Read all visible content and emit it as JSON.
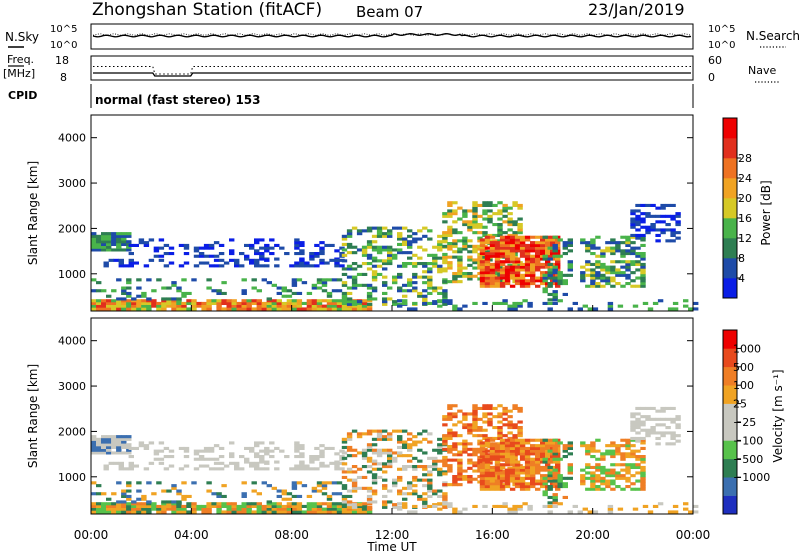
{
  "header": {
    "station": "Zhongshan Station (fitACF)",
    "beam": "Beam 07",
    "date": "23/Jan/2019"
  },
  "noise_panel": {
    "left_label": "N.Sky",
    "right_label": "N.Search",
    "left_ticks": [
      "10^5",
      "10^0"
    ],
    "right_ticks": [
      "10^5",
      "10^0"
    ]
  },
  "freq_panel": {
    "left_label_1": "Freq.",
    "left_label_2": "[MHz]",
    "right_label": "Nave",
    "left_ticks": [
      "18",
      "8"
    ],
    "right_ticks": [
      "60",
      "0"
    ]
  },
  "cpid_panel": {
    "label": "CPID",
    "text": "normal (fast stereo) 153"
  },
  "chart_data": [
    {
      "type": "heatmap",
      "quantity": "Power",
      "ylabel": "Slant Range [km]",
      "ylim": [
        180,
        4500
      ],
      "yticks": [
        "1000",
        "2000",
        "3000",
        "4000"
      ],
      "xlim_hours": [
        0,
        24
      ],
      "colorbar_label": "Power [dB]",
      "colorbar_ticks": [
        "4",
        "8",
        "12",
        "16",
        "20",
        "24",
        "28"
      ],
      "colors": [
        "#0a1ee6",
        "#1e4ba8",
        "#2e7e52",
        "#49b34a",
        "#d6c926",
        "#f0a323",
        "#ee7222",
        "#e12f1d",
        "#ee0000"
      ]
    },
    {
      "type": "heatmap",
      "quantity": "Velocity",
      "ylabel": "Slant Range [km]",
      "ylim": [
        180,
        4500
      ],
      "yticks": [
        "1000",
        "2000",
        "3000",
        "4000"
      ],
      "xlim_hours": [
        0,
        24
      ],
      "colorbar_label": "Velocity [m s⁻¹]",
      "colorbar_ticks": [
        "1000",
        "500",
        "100",
        "25",
        "−25",
        "−100",
        "−500",
        "−1000"
      ],
      "colors": [
        "#1e2fbf",
        "#3b6fb0",
        "#2e7e52",
        "#57c24b",
        "#c8c8c0",
        "#c8c8c0",
        "#f0a323",
        "#ef7e25",
        "#e84a1d",
        "#ee0000"
      ]
    }
  ],
  "x_axis": {
    "ticks": [
      "00:00",
      "04:00",
      "08:00",
      "12:00",
      "16:00",
      "20:00",
      "00:00"
    ],
    "label": "Time UT"
  }
}
